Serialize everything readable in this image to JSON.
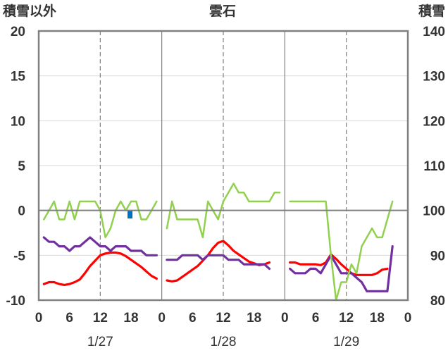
{
  "chart_data": {
    "type": "line",
    "title": "雲石",
    "left_axis_label": "積雪以外",
    "right_axis_label": "積雪",
    "left_ylim": [
      -10,
      20
    ],
    "right_ylim": [
      80,
      140
    ],
    "left_ticks": [
      "20",
      "15",
      "10",
      "5",
      "0",
      "-5",
      "-10"
    ],
    "right_ticks": [
      "140",
      "130",
      "120",
      "110",
      "100",
      "90",
      "80"
    ],
    "x_range_hours": [
      0,
      72
    ],
    "x_tick_labels": [
      "0",
      "6",
      "12",
      "18",
      "0",
      "6",
      "12",
      "18",
      "0",
      "6",
      "12",
      "18",
      "0"
    ],
    "date_labels": [
      "1/27",
      "1/28",
      "1/29"
    ],
    "grid": "dashed vertical at hours 12 and 18-offset days; solid separators at day boundaries",
    "colors": {
      "red": "#ff0000",
      "purple": "#7030a0",
      "green": "#92d050",
      "blue": "#0070c0",
      "axis": "#808080"
    },
    "series": [
      {
        "color": "red",
        "axis": "left",
        "segments": [
          [
            [
              1,
              -8.2
            ],
            [
              2,
              -8.0
            ],
            [
              3,
              -8.0
            ],
            [
              4,
              -8.2
            ],
            [
              5,
              -8.3
            ],
            [
              6,
              -8.2
            ],
            [
              7,
              -8.0
            ],
            [
              8,
              -7.7
            ],
            [
              9,
              -7.0
            ],
            [
              10,
              -6.2
            ],
            [
              11,
              -5.6
            ],
            [
              12,
              -5.0
            ],
            [
              13,
              -4.8
            ],
            [
              14,
              -4.7
            ],
            [
              15,
              -4.7
            ],
            [
              16,
              -4.8
            ],
            [
              17,
              -5.1
            ],
            [
              18,
              -5.5
            ],
            [
              19,
              -5.9
            ],
            [
              20,
              -6.3
            ],
            [
              21,
              -6.8
            ],
            [
              22,
              -7.3
            ],
            [
              23,
              -7.6
            ]
          ],
          [
            [
              25,
              -7.8
            ],
            [
              26,
              -7.9
            ],
            [
              27,
              -7.8
            ],
            [
              28,
              -7.4
            ],
            [
              29,
              -7.0
            ],
            [
              30,
              -6.6
            ],
            [
              31,
              -6.2
            ],
            [
              32,
              -5.6
            ],
            [
              33,
              -5.0
            ],
            [
              34,
              -4.2
            ],
            [
              35,
              -3.6
            ],
            [
              36,
              -3.4
            ],
            [
              37,
              -3.9
            ],
            [
              38,
              -4.5
            ],
            [
              39,
              -4.9
            ],
            [
              40,
              -5.3
            ],
            [
              41,
              -5.7
            ],
            [
              42,
              -5.9
            ],
            [
              43,
              -6.1
            ],
            [
              44,
              -6.0
            ],
            [
              45,
              -5.8
            ]
          ],
          [
            [
              49,
              -5.8
            ],
            [
              50,
              -5.8
            ],
            [
              51,
              -6.0
            ],
            [
              52,
              -6.0
            ],
            [
              53,
              -6.0
            ],
            [
              54,
              -6.0
            ],
            [
              55,
              -6.1
            ],
            [
              56,
              -5.8
            ],
            [
              57,
              -4.9
            ],
            [
              58,
              -5.4
            ],
            [
              59,
              -6.0
            ],
            [
              60,
              -6.5
            ],
            [
              61,
              -7.0
            ],
            [
              62,
              -7.2
            ],
            [
              63,
              -7.2
            ],
            [
              64,
              -7.2
            ],
            [
              65,
              -7.2
            ],
            [
              66,
              -7.0
            ],
            [
              67,
              -6.6
            ],
            [
              68,
              -6.5
            ]
          ]
        ]
      },
      {
        "color": "purple",
        "axis": "left",
        "segments": [
          [
            [
              1,
              -3.0
            ],
            [
              2,
              -3.5
            ],
            [
              3,
              -3.5
            ],
            [
              4,
              -4.0
            ],
            [
              5,
              -4.0
            ],
            [
              6,
              -4.5
            ],
            [
              7,
              -4.0
            ],
            [
              8,
              -4.0
            ],
            [
              9,
              -3.5
            ],
            [
              10,
              -3.0
            ],
            [
              11,
              -3.5
            ],
            [
              12,
              -4.0
            ],
            [
              13,
              -4.0
            ],
            [
              14,
              -4.5
            ],
            [
              15,
              -4.0
            ],
            [
              16,
              -4.0
            ],
            [
              17,
              -4.0
            ],
            [
              18,
              -4.5
            ],
            [
              19,
              -4.5
            ],
            [
              20,
              -4.5
            ],
            [
              21,
              -5.0
            ],
            [
              22,
              -5.0
            ],
            [
              23,
              -5.0
            ]
          ],
          [
            [
              25,
              -5.5
            ],
            [
              26,
              -5.5
            ],
            [
              27,
              -5.5
            ],
            [
              28,
              -5.0
            ],
            [
              29,
              -5.0
            ],
            [
              30,
              -5.0
            ],
            [
              31,
              -5.0
            ],
            [
              32,
              -5.5
            ],
            [
              33,
              -5.0
            ],
            [
              34,
              -5.0
            ],
            [
              35,
              -5.0
            ],
            [
              36,
              -5.0
            ],
            [
              37,
              -5.5
            ],
            [
              38,
              -5.5
            ],
            [
              39,
              -5.5
            ],
            [
              40,
              -6.0
            ],
            [
              41,
              -6.0
            ],
            [
              42,
              -6.0
            ],
            [
              43,
              -6.0
            ],
            [
              44,
              -6.0
            ],
            [
              45,
              -6.5
            ]
          ],
          [
            [
              49,
              -6.5
            ],
            [
              50,
              -7.0
            ],
            [
              51,
              -7.0
            ],
            [
              52,
              -7.0
            ],
            [
              53,
              -6.5
            ],
            [
              54,
              -6.5
            ],
            [
              55,
              -7.0
            ],
            [
              56,
              -6.0
            ],
            [
              57,
              -5.0
            ],
            [
              58,
              -6.0
            ],
            [
              59,
              -7.0
            ],
            [
              60,
              -7.0
            ],
            [
              61,
              -7.0
            ],
            [
              62,
              -7.5
            ],
            [
              63,
              -8.0
            ],
            [
              64,
              -9.0
            ],
            [
              65,
              -9.0
            ],
            [
              66,
              -9.0
            ],
            [
              67,
              -9.0
            ],
            [
              68,
              -9.0
            ],
            [
              69,
              -4.0
            ]
          ]
        ]
      },
      {
        "color": "green",
        "axis": "left",
        "segments": [
          [
            [
              1,
              -1.0
            ],
            [
              2,
              0.0
            ],
            [
              3,
              1.0
            ],
            [
              4,
              -1.0
            ],
            [
              5,
              -1.0
            ],
            [
              6,
              1.0
            ],
            [
              7,
              -1.0
            ],
            [
              8,
              1.0
            ],
            [
              9,
              1.0
            ],
            [
              10,
              1.0
            ],
            [
              11,
              1.0
            ],
            [
              12,
              0.0
            ],
            [
              13,
              -3.0
            ],
            [
              14,
              -2.0
            ],
            [
              15,
              0.0
            ],
            [
              16,
              1.0
            ],
            [
              17,
              0.0
            ],
            [
              18,
              1.0
            ],
            [
              19,
              1.0
            ],
            [
              20,
              -1.0
            ],
            [
              21,
              -1.0
            ],
            [
              22,
              0.0
            ],
            [
              23,
              1.0
            ]
          ],
          [
            [
              25,
              -2.0
            ],
            [
              26,
              1.0
            ],
            [
              27,
              -1.0
            ],
            [
              28,
              -1.0
            ],
            [
              29,
              -1.0
            ],
            [
              30,
              -1.0
            ],
            [
              31,
              -1.0
            ],
            [
              32,
              -3.0
            ],
            [
              33,
              1.0
            ],
            [
              34,
              0.0
            ],
            [
              35,
              -1.0
            ],
            [
              36,
              1.0
            ],
            [
              37,
              2.0
            ],
            [
              38,
              3.0
            ],
            [
              39,
              2.0
            ],
            [
              40,
              2.0
            ],
            [
              41,
              1.0
            ],
            [
              42,
              1.0
            ],
            [
              43,
              1.0
            ],
            [
              44,
              1.0
            ],
            [
              45,
              1.0
            ],
            [
              46,
              2.0
            ],
            [
              47,
              2.0
            ]
          ],
          [
            [
              49,
              1.0
            ],
            [
              50,
              1.0
            ],
            [
              51,
              1.0
            ],
            [
              52,
              1.0
            ],
            [
              53,
              1.0
            ],
            [
              54,
              1.0
            ],
            [
              55,
              1.0
            ],
            [
              56,
              1.0
            ],
            [
              57,
              -5.0
            ],
            [
              58,
              -10.0
            ],
            [
              59,
              -8.0
            ],
            [
              60,
              -8.0
            ],
            [
              61,
              -6.0
            ],
            [
              62,
              -7.0
            ],
            [
              63,
              -4.0
            ],
            [
              64,
              -3.0
            ],
            [
              65,
              -2.0
            ],
            [
              66,
              -3.0
            ],
            [
              67,
              -3.0
            ],
            [
              68,
              -1.0
            ],
            [
              69,
              1.0
            ]
          ]
        ]
      },
      {
        "color": "blue",
        "axis": "left",
        "type": "bar",
        "points": [
          [
            17.8,
            -0.9
          ]
        ]
      }
    ]
  }
}
